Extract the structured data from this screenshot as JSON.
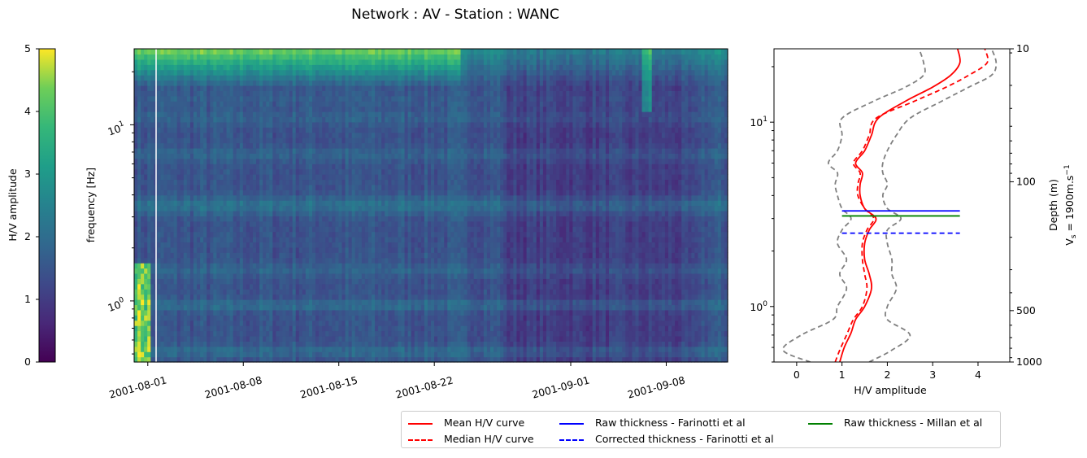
{
  "figure": {
    "title": "Network : AV - Station : WANC"
  },
  "colorbar": {
    "label": "H/V amplitude",
    "ticks": [
      "0",
      "1",
      "2",
      "3",
      "4",
      "5"
    ],
    "range": [
      0,
      5
    ],
    "colormap": "viridis"
  },
  "spectrogram": {
    "ylabel": "frequency [Hz]",
    "yticks": [
      "10^0",
      "10^1"
    ],
    "xticks": [
      "2001-08-01",
      "2001-08-08",
      "2001-08-15",
      "2001-08-22",
      "2001-09-01",
      "2001-09-08"
    ]
  },
  "hv_panel": {
    "xlabel": "H/V amplitude",
    "xticks": [
      "0",
      "1",
      "2",
      "3",
      "4"
    ],
    "yticks_left": [
      "10^0",
      "10^1"
    ],
    "right_axis_label_1": "Depth (m)",
    "right_axis_label_2": "V",
    "right_axis_label_sub": "s",
    "right_axis_label_3": " = 1900m.s",
    "right_axis_label_sup": "−1",
    "right_ticks": [
      "10",
      "100",
      "500",
      "1000"
    ]
  },
  "legend": {
    "entries": [
      {
        "label": "Mean H/V curve",
        "color": "#ff0000",
        "style": "solid"
      },
      {
        "label": "Median H/V curve",
        "color": "#ff0000",
        "style": "dashed"
      },
      {
        "label": "Raw thickness - Farinotti et al",
        "color": "#0000ff",
        "style": "solid"
      },
      {
        "label": "Corrected thickness - Farinotti et al",
        "color": "#0000ff",
        "style": "dashed"
      },
      {
        "label": "Raw thickness - Millan et al",
        "color": "#008000",
        "style": "solid"
      }
    ]
  },
  "chart_data": [
    {
      "type": "heatmap",
      "x_range": [
        "2001-07-31",
        "2001-09-12"
      ],
      "y_range_hz": [
        0.45,
        27
      ],
      "y_scale": "log",
      "value_range": [
        0,
        5
      ],
      "time_bins": 180,
      "freq_bins": 60
    },
    {
      "type": "line",
      "x_range": [
        -0.5,
        4.7
      ],
      "y_range_hz": [
        0.5,
        25
      ],
      "y_scale": "log",
      "series": [
        {
          "name": "Mean H/V curve",
          "points": [
            [
              0.95,
              0.5
            ],
            [
              1.05,
              0.6
            ],
            [
              1.2,
              0.72
            ],
            [
              1.3,
              0.85
            ],
            [
              1.5,
              1.0
            ],
            [
              1.65,
              1.25
            ],
            [
              1.6,
              1.5
            ],
            [
              1.5,
              1.8
            ],
            [
              1.5,
              2.2
            ],
            [
              1.6,
              2.6
            ],
            [
              1.75,
              3.0
            ],
            [
              1.5,
              3.4
            ],
            [
              1.4,
              4.0
            ],
            [
              1.4,
              4.6
            ],
            [
              1.45,
              5.3
            ],
            [
              1.3,
              6.0
            ],
            [
              1.5,
              7.0
            ],
            [
              1.65,
              8.5
            ],
            [
              1.8,
              10.5
            ],
            [
              2.4,
              13.0
            ],
            [
              3.0,
              15.5
            ],
            [
              3.4,
              18.0
            ],
            [
              3.6,
              21.0
            ],
            [
              3.55,
              25.0
            ]
          ]
        },
        {
          "name": "Median H/V curve",
          "points": [
            [
              0.85,
              0.5
            ],
            [
              0.95,
              0.58
            ],
            [
              1.1,
              0.7
            ],
            [
              1.25,
              0.85
            ],
            [
              1.45,
              1.0
            ],
            [
              1.55,
              1.25
            ],
            [
              1.5,
              1.5
            ],
            [
              1.45,
              1.8
            ],
            [
              1.45,
              2.2
            ],
            [
              1.55,
              2.6
            ],
            [
              1.7,
              3.0
            ],
            [
              1.5,
              3.4
            ],
            [
              1.35,
              4.0
            ],
            [
              1.35,
              4.6
            ],
            [
              1.4,
              5.3
            ],
            [
              1.25,
              6.0
            ],
            [
              1.45,
              7.0
            ],
            [
              1.6,
              8.5
            ],
            [
              1.75,
              10.5
            ],
            [
              2.6,
              13.0
            ],
            [
              3.3,
              15.5
            ],
            [
              3.8,
              18.0
            ],
            [
              4.2,
              21.0
            ],
            [
              4.15,
              25.0
            ]
          ]
        },
        {
          "name": "Mean - std",
          "points": [
            [
              0.3,
              0.5
            ],
            [
              -0.3,
              0.58
            ],
            [
              0.1,
              0.7
            ],
            [
              0.8,
              0.85
            ],
            [
              0.9,
              1.0
            ],
            [
              1.1,
              1.25
            ],
            [
              0.95,
              1.5
            ],
            [
              1.1,
              1.8
            ],
            [
              0.9,
              2.2
            ],
            [
              1.0,
              2.6
            ],
            [
              1.2,
              3.0
            ],
            [
              1.0,
              3.4
            ],
            [
              0.9,
              4.0
            ],
            [
              0.85,
              4.6
            ],
            [
              0.9,
              5.3
            ],
            [
              0.7,
              6.0
            ],
            [
              0.9,
              7.0
            ],
            [
              1.0,
              8.5
            ],
            [
              1.0,
              10.5
            ],
            [
              1.7,
              13.0
            ],
            [
              2.4,
              15.5
            ],
            [
              2.8,
              18.0
            ],
            [
              2.8,
              21.0
            ],
            [
              2.7,
              25.0
            ]
          ]
        },
        {
          "name": "Mean + std",
          "points": [
            [
              1.6,
              0.5
            ],
            [
              2.1,
              0.58
            ],
            [
              2.5,
              0.7
            ],
            [
              2.0,
              0.85
            ],
            [
              2.0,
              1.0
            ],
            [
              2.2,
              1.25
            ],
            [
              2.1,
              1.5
            ],
            [
              2.1,
              1.8
            ],
            [
              2.0,
              2.2
            ],
            [
              2.0,
              2.6
            ],
            [
              2.3,
              3.0
            ],
            [
              2.0,
              3.4
            ],
            [
              1.9,
              4.0
            ],
            [
              2.0,
              4.6
            ],
            [
              1.9,
              5.3
            ],
            [
              1.9,
              6.0
            ],
            [
              2.0,
              7.0
            ],
            [
              2.2,
              8.5
            ],
            [
              2.5,
              10.5
            ],
            [
              3.2,
              13.0
            ],
            [
              3.8,
              15.5
            ],
            [
              4.3,
              18.0
            ],
            [
              4.4,
              21.0
            ],
            [
              4.3,
              25.0
            ]
          ]
        },
        {
          "name": "Raw thickness - Farinotti et al",
          "points": [
            [
              1.0,
              3.3
            ],
            [
              3.6,
              3.3
            ]
          ]
        },
        {
          "name": "Corrected thickness - Farinotti et al",
          "points": [
            [
              1.0,
              2.5
            ],
            [
              3.6,
              2.5
            ]
          ]
        },
        {
          "name": "Raw thickness - Millan et al",
          "points": [
            [
              1.0,
              3.1
            ],
            [
              3.6,
              3.1
            ]
          ]
        }
      ],
      "depth_axis": {
        "label": "Depth (m)",
        "ticks_m": [
          10,
          100,
          500,
          1000
        ],
        "vs": "1900m.s-1"
      }
    }
  ]
}
